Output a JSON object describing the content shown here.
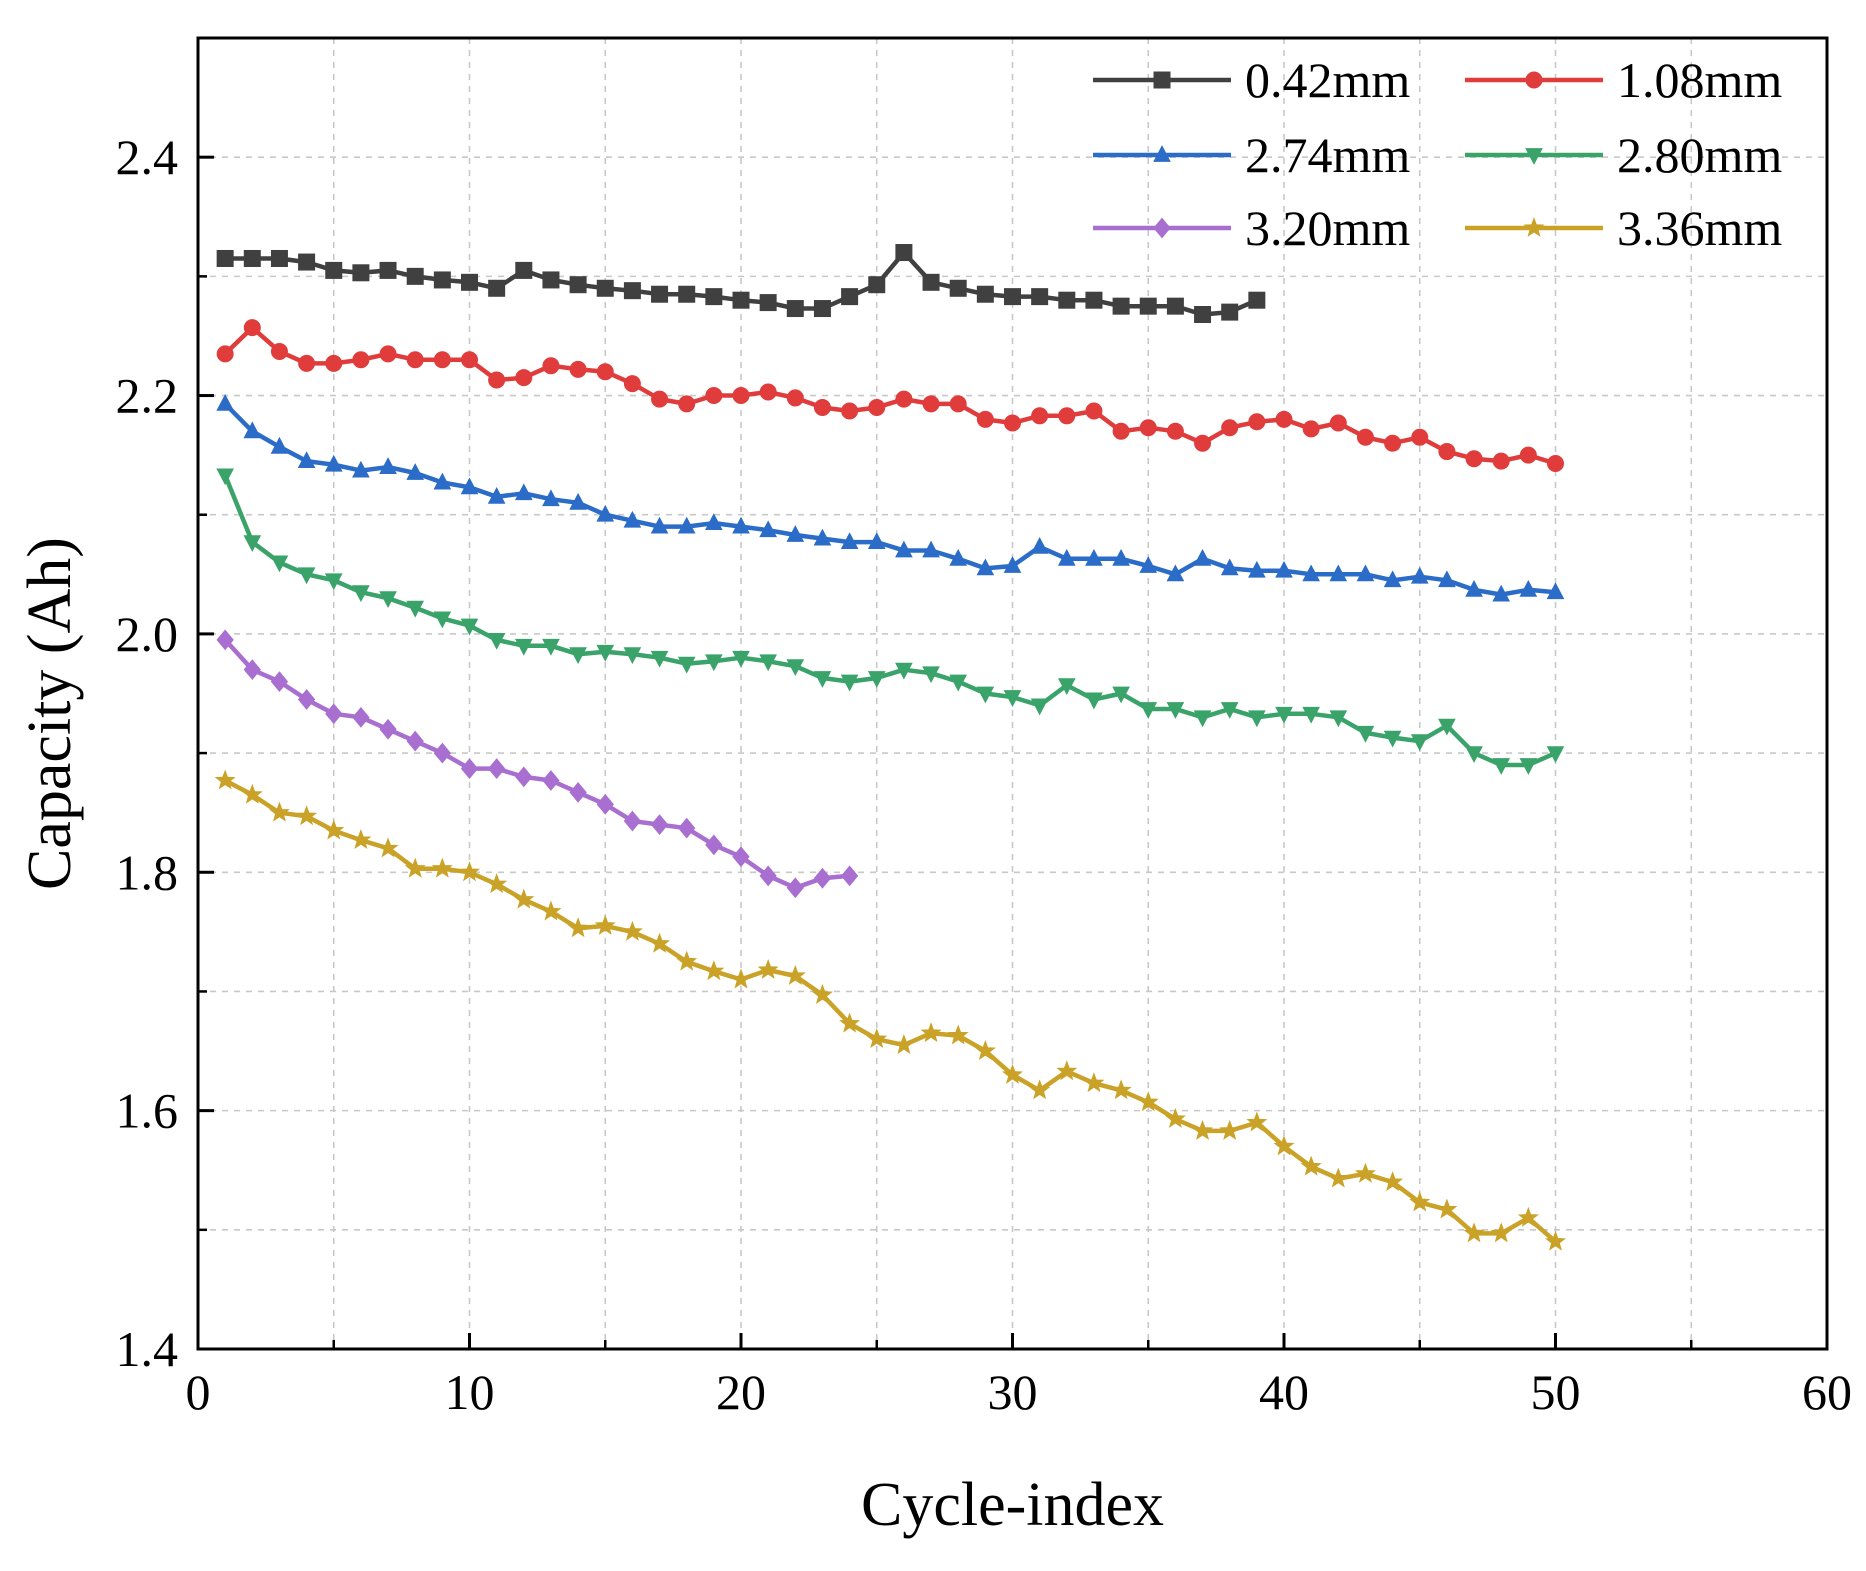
{
  "chart_data": {
    "type": "line",
    "xlabel": "Cycle-index",
    "ylabel": "Capacity (Ah)",
    "xlim": [
      0,
      60
    ],
    "ylim": [
      1.4,
      2.5
    ],
    "xticks": [
      0,
      10,
      20,
      30,
      40,
      50,
      60
    ],
    "yticks": [
      1.4,
      1.6,
      1.8,
      2.0,
      2.2,
      2.4
    ],
    "ytick_labels": [
      "1.4",
      "1.6",
      "1.8",
      "2.0",
      "2.2",
      "2.4"
    ],
    "grid": true,
    "legend_position": "top-right",
    "series": [
      {
        "name": "0.42mm",
        "color": "#404040",
        "marker": "square",
        "x": [
          1,
          2,
          3,
          4,
          5,
          6,
          7,
          8,
          9,
          10,
          11,
          12,
          13,
          14,
          15,
          16,
          17,
          18,
          19,
          20,
          21,
          22,
          23,
          24,
          25,
          26,
          27,
          28,
          29,
          30,
          31,
          32,
          33,
          34,
          35,
          36,
          37,
          38,
          39
        ],
        "values": [
          2.315,
          2.315,
          2.315,
          2.312,
          2.305,
          2.303,
          2.305,
          2.3,
          2.297,
          2.295,
          2.29,
          2.305,
          2.297,
          2.293,
          2.29,
          2.288,
          2.285,
          2.285,
          2.283,
          2.28,
          2.278,
          2.273,
          2.273,
          2.283,
          2.293,
          2.32,
          2.295,
          2.29,
          2.285,
          2.283,
          2.283,
          2.28,
          2.28,
          2.275,
          2.275,
          2.275,
          2.268,
          2.27,
          2.28
        ]
      },
      {
        "name": "1.08mm",
        "color": "#e03c3c",
        "marker": "circle",
        "x": [
          1,
          2,
          3,
          4,
          5,
          6,
          7,
          8,
          9,
          10,
          11,
          12,
          13,
          14,
          15,
          16,
          17,
          18,
          19,
          20,
          21,
          22,
          23,
          24,
          25,
          26,
          27,
          28,
          29,
          30,
          31,
          32,
          33,
          34,
          35,
          36,
          37,
          38,
          39,
          40,
          41,
          42,
          43,
          44,
          45,
          46,
          47,
          48,
          49,
          50
        ],
        "values": [
          2.235,
          2.257,
          2.237,
          2.227,
          2.227,
          2.23,
          2.235,
          2.23,
          2.23,
          2.23,
          2.213,
          2.215,
          2.225,
          2.222,
          2.22,
          2.21,
          2.197,
          2.193,
          2.2,
          2.2,
          2.203,
          2.198,
          2.19,
          2.187,
          2.19,
          2.197,
          2.193,
          2.193,
          2.18,
          2.177,
          2.183,
          2.183,
          2.187,
          2.17,
          2.173,
          2.17,
          2.16,
          2.173,
          2.178,
          2.18,
          2.172,
          2.177,
          2.165,
          2.16,
          2.165,
          2.153,
          2.147,
          2.145,
          2.15,
          2.143
        ]
      },
      {
        "name": "2.74mm",
        "color": "#2b6cc8",
        "marker": "triangle-up",
        "x": [
          1,
          2,
          3,
          4,
          5,
          6,
          7,
          8,
          9,
          10,
          11,
          12,
          13,
          14,
          15,
          16,
          17,
          18,
          19,
          20,
          21,
          22,
          23,
          24,
          25,
          26,
          27,
          28,
          29,
          30,
          31,
          32,
          33,
          34,
          35,
          36,
          37,
          38,
          39,
          40,
          41,
          42,
          43,
          44,
          45,
          46,
          47,
          48,
          49,
          50
        ],
        "values": [
          2.193,
          2.17,
          2.157,
          2.145,
          2.142,
          2.137,
          2.14,
          2.135,
          2.127,
          2.123,
          2.115,
          2.118,
          2.113,
          2.11,
          2.1,
          2.095,
          2.09,
          2.09,
          2.093,
          2.09,
          2.087,
          2.083,
          2.08,
          2.077,
          2.077,
          2.07,
          2.07,
          2.063,
          2.055,
          2.057,
          2.073,
          2.063,
          2.063,
          2.063,
          2.057,
          2.05,
          2.063,
          2.055,
          2.053,
          2.053,
          2.05,
          2.05,
          2.05,
          2.045,
          2.048,
          2.045,
          2.037,
          2.033,
          2.037,
          2.035
        ]
      },
      {
        "name": "2.80mm",
        "color": "#3aa36a",
        "marker": "triangle-down",
        "x": [
          1,
          2,
          3,
          4,
          5,
          6,
          7,
          8,
          9,
          10,
          11,
          12,
          13,
          14,
          15,
          16,
          17,
          18,
          19,
          20,
          21,
          22,
          23,
          24,
          25,
          26,
          27,
          28,
          29,
          30,
          31,
          32,
          33,
          34,
          35,
          36,
          37,
          38,
          39,
          40,
          41,
          42,
          43,
          44,
          45,
          46,
          47,
          48,
          49,
          50
        ],
        "values": [
          2.133,
          2.077,
          2.06,
          2.05,
          2.045,
          2.035,
          2.03,
          2.022,
          2.013,
          2.007,
          1.995,
          1.99,
          1.99,
          1.983,
          1.985,
          1.983,
          1.98,
          1.975,
          1.977,
          1.98,
          1.977,
          1.973,
          1.963,
          1.96,
          1.963,
          1.97,
          1.967,
          1.96,
          1.95,
          1.947,
          1.94,
          1.957,
          1.945,
          1.95,
          1.937,
          1.937,
          1.93,
          1.937,
          1.93,
          1.933,
          1.933,
          1.93,
          1.917,
          1.913,
          1.91,
          1.923,
          1.9,
          1.89,
          1.89,
          1.9
        ]
      },
      {
        "name": "3.20mm",
        "color": "#a86fd0",
        "marker": "diamond",
        "x": [
          1,
          2,
          3,
          4,
          5,
          6,
          7,
          8,
          9,
          10,
          11,
          12,
          13,
          14,
          15,
          16,
          17,
          18,
          19,
          20,
          21,
          22,
          23,
          24
        ],
        "values": [
          1.995,
          1.97,
          1.96,
          1.945,
          1.933,
          1.93,
          1.92,
          1.91,
          1.9,
          1.887,
          1.887,
          1.88,
          1.877,
          1.867,
          1.857,
          1.843,
          1.84,
          1.837,
          1.823,
          1.813,
          1.797,
          1.787,
          1.795,
          1.797
        ]
      },
      {
        "name": "3.36mm",
        "color": "#c9a227",
        "marker": "star",
        "x": [
          1,
          2,
          3,
          4,
          5,
          6,
          7,
          8,
          9,
          10,
          11,
          12,
          13,
          14,
          15,
          16,
          17,
          18,
          19,
          20,
          21,
          22,
          23,
          24,
          25,
          26,
          27,
          28,
          29,
          30,
          31,
          32,
          33,
          34,
          35,
          36,
          37,
          38,
          39,
          40,
          41,
          42,
          43,
          44,
          45,
          46,
          47,
          48,
          49,
          50
        ],
        "values": [
          1.877,
          1.865,
          1.85,
          1.847,
          1.835,
          1.827,
          1.82,
          1.803,
          1.803,
          1.8,
          1.79,
          1.777,
          1.767,
          1.753,
          1.755,
          1.75,
          1.74,
          1.725,
          1.717,
          1.71,
          1.718,
          1.713,
          1.697,
          1.673,
          1.66,
          1.655,
          1.665,
          1.663,
          1.65,
          1.63,
          1.617,
          1.633,
          1.623,
          1.617,
          1.607,
          1.593,
          1.583,
          1.583,
          1.59,
          1.57,
          1.553,
          1.543,
          1.547,
          1.54,
          1.523,
          1.517,
          1.497,
          1.497,
          1.51,
          1.49
        ]
      }
    ]
  }
}
